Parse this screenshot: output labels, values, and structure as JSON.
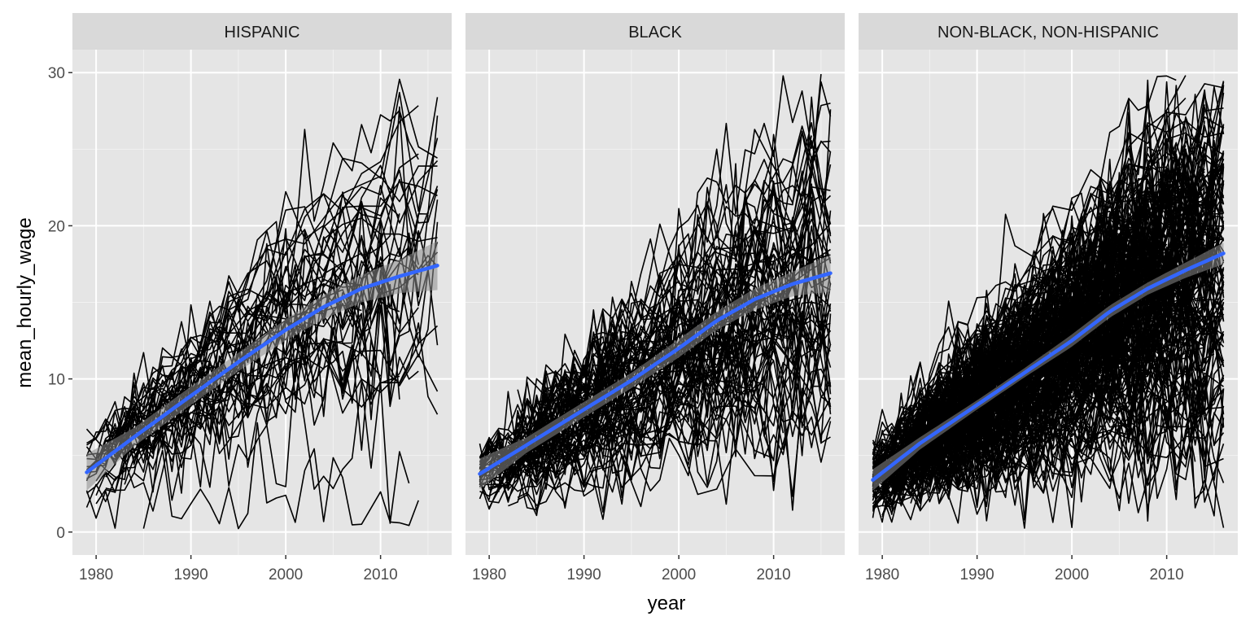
{
  "chart_data": {
    "type": "line",
    "facet_by": "race",
    "xlabel": "year",
    "ylabel": "mean_hourly_wage",
    "xlim": [
      1977.5,
      2017.5
    ],
    "ylim": [
      -1.5,
      31.5
    ],
    "x_ticks": [
      1980,
      1990,
      2000,
      2010
    ],
    "x_tick_labels": [
      "1980",
      "1990",
      "2000",
      "2010"
    ],
    "y_ticks": [
      0,
      10,
      20,
      30
    ],
    "y_tick_labels": [
      "0",
      "10",
      "20",
      "30"
    ],
    "grid": true,
    "individual_line_color": "#000000",
    "smooth_line_color": "#3366ff",
    "ribbon_color": "#8c8c8c",
    "panel_background": "#e5e5e5",
    "strip_background": "#d9d9d9",
    "facets": [
      {
        "label": "HISPANIC",
        "n_individuals": 45,
        "smooth": {
          "x": [
            1979,
            1984,
            1990,
            1995,
            2000,
            2004,
            2008,
            2012,
            2016
          ],
          "y": [
            3.9,
            6.2,
            8.9,
            11.1,
            13.2,
            14.7,
            15.9,
            16.7,
            17.4
          ]
        },
        "ribbon_se": [
          0.6,
          0.3,
          0.3,
          0.3,
          0.35,
          0.4,
          0.45,
          0.55,
          0.8
        ]
      },
      {
        "label": "BLACK",
        "n_individuals": 80,
        "smooth": {
          "x": [
            1979,
            1984,
            1990,
            1995,
            2000,
            2004,
            2008,
            2012,
            2016
          ],
          "y": [
            3.8,
            5.7,
            8.0,
            9.9,
            12.0,
            13.8,
            15.2,
            16.2,
            16.9
          ]
        },
        "ribbon_se": [
          0.5,
          0.25,
          0.25,
          0.25,
          0.3,
          0.3,
          0.35,
          0.4,
          0.6
        ]
      },
      {
        "label": "NON-BLACK, NON-HISPANIC",
        "n_individuals": 220,
        "smooth": {
          "x": [
            1979,
            1984,
            1990,
            1995,
            2000,
            2004,
            2008,
            2012,
            2016
          ],
          "y": [
            3.4,
            5.8,
            8.3,
            10.4,
            12.5,
            14.4,
            15.9,
            17.1,
            18.2
          ]
        },
        "ribbon_se": [
          0.35,
          0.2,
          0.15,
          0.15,
          0.2,
          0.2,
          0.2,
          0.25,
          0.35
        ]
      }
    ]
  }
}
